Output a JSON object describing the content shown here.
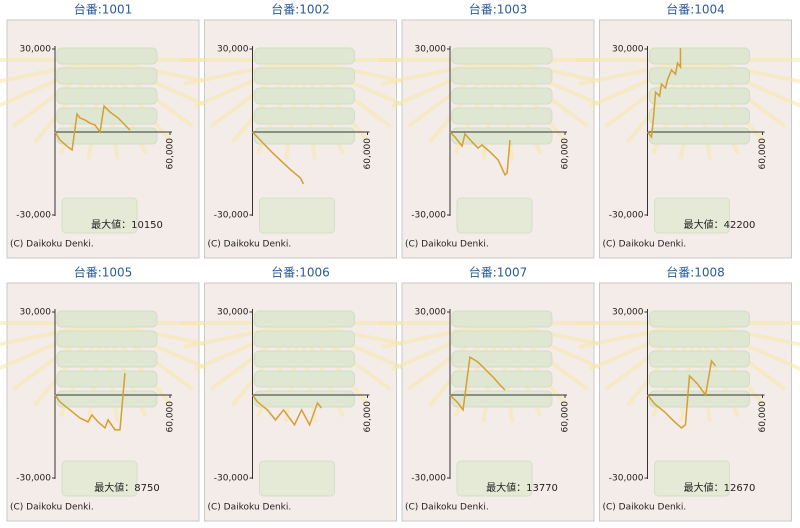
{
  "chart_data": [
    {
      "type": "line",
      "title": "台番:1001",
      "annotation": "最大値：10150",
      "footer": "(C) Daikoku Denki.",
      "xlim": [
        0,
        60000
      ],
      "ylim": [
        -30000,
        30000
      ],
      "xticks": [
        {
          "value": 60000,
          "label": "60,000"
        }
      ],
      "yticks": [
        {
          "value": 30000,
          "label": "30,000"
        },
        {
          "value": -30000,
          "label": "-30,000"
        }
      ],
      "color": "#d4a030",
      "x": [
        0,
        2600,
        6800,
        8900,
        11500,
        13000,
        15700,
        18300,
        20900,
        23500,
        25600,
        28700,
        32900,
        36000,
        39100
      ],
      "values": [
        0,
        -2900,
        -5400,
        -6500,
        6500,
        5100,
        4300,
        3200,
        2500,
        0,
        9400,
        7200,
        5100,
        2900,
        700
      ]
    },
    {
      "type": "line",
      "title": "台番:1002",
      "footer": "(C) Daikoku Denki.",
      "xlim": [
        0,
        60000
      ],
      "ylim": [
        -30000,
        30000
      ],
      "xticks": [
        {
          "value": 60000,
          "label": "60,000"
        }
      ],
      "yticks": [
        {
          "value": 30000,
          "label": "30,000"
        },
        {
          "value": -30000,
          "label": "-30,000"
        }
      ],
      "color": "#d4a030",
      "x": [
        0,
        5000,
        10000,
        15000,
        20000,
        25000,
        26600
      ],
      "values": [
        0,
        -3600,
        -7200,
        -10500,
        -13700,
        -16600,
        -18800
      ]
    },
    {
      "type": "line",
      "title": "台番:1003",
      "footer": "(C) Daikoku Denki.",
      "xlim": [
        0,
        60000
      ],
      "ylim": [
        -30000,
        30000
      ],
      "xticks": [
        {
          "value": 60000,
          "label": "60,000"
        }
      ],
      "yticks": [
        {
          "value": 30000,
          "label": "30,000"
        },
        {
          "value": -30000,
          "label": "-30,000"
        }
      ],
      "color": "#d4a030",
      "x": [
        0,
        2600,
        6300,
        7800,
        11500,
        14600,
        16700,
        20900,
        25100,
        28700,
        29800,
        31300
      ],
      "values": [
        0,
        -1800,
        -5100,
        -700,
        -3600,
        -5800,
        -4700,
        -7200,
        -10100,
        -15500,
        -14800,
        -2900
      ]
    },
    {
      "type": "line",
      "title": "台番:1004",
      "annotation": "最大値：42200",
      "footer": "(C) Daikoku Denki.",
      "xlim": [
        0,
        60000
      ],
      "ylim": [
        -30000,
        30000
      ],
      "xticks": [
        {
          "value": 60000,
          "label": "60,000"
        }
      ],
      "yticks": [
        {
          "value": 30000,
          "label": "30,000"
        },
        {
          "value": -30000,
          "label": "-30,000"
        }
      ],
      "color": "#d4a030",
      "x": [
        0,
        2100,
        3100,
        4200,
        6300,
        7300,
        9400,
        10400,
        12500,
        14600,
        15700,
        17200,
        17200
      ],
      "values": [
        0,
        -1800,
        5100,
        14400,
        13000,
        17300,
        15900,
        18800,
        22400,
        20900,
        24900,
        23500,
        30300
      ]
    },
    {
      "type": "line",
      "title": "台番:1005",
      "annotation": "最大値：8750",
      "footer": "(C) Daikoku Denki.",
      "xlim": [
        0,
        60000
      ],
      "ylim": [
        -30000,
        30000
      ],
      "xticks": [
        {
          "value": 60000,
          "label": "60,000"
        }
      ],
      "yticks": [
        {
          "value": 30000,
          "label": "30,000"
        },
        {
          "value": -30000,
          "label": "-30,000"
        }
      ],
      "color": "#d4a030",
      "x": [
        0,
        2600,
        7800,
        13000,
        17200,
        19300,
        22400,
        26100,
        27700,
        31300,
        33900,
        36500
      ],
      "values": [
        0,
        -2500,
        -5400,
        -8300,
        -9700,
        -7200,
        -9700,
        -11900,
        -9000,
        -12600,
        -12600,
        7900
      ]
    },
    {
      "type": "line",
      "title": "台番:1006",
      "footer": "(C) Daikoku Denki.",
      "xlim": [
        0,
        60000
      ],
      "ylim": [
        -30000,
        30000
      ],
      "xticks": [
        {
          "value": 60000,
          "label": "60,000"
        }
      ],
      "yticks": [
        {
          "value": 30000,
          "label": "30,000"
        },
        {
          "value": -30000,
          "label": "-30,000"
        }
      ],
      "color": "#d4a030",
      "x": [
        0,
        2600,
        7800,
        12000,
        16200,
        21900,
        25600,
        29800,
        33900,
        36000
      ],
      "values": [
        0,
        -2500,
        -5400,
        -9000,
        -5400,
        -10800,
        -5400,
        -10800,
        -2900,
        -4700
      ]
    },
    {
      "type": "line",
      "title": "台番:1007",
      "annotation": "最大値：13770",
      "footer": "(C) Daikoku Denki.",
      "xlim": [
        0,
        60000
      ],
      "ylim": [
        -30000,
        30000
      ],
      "xticks": [
        {
          "value": 60000,
          "label": "60,000"
        }
      ],
      "yticks": [
        {
          "value": 30000,
          "label": "30,000"
        },
        {
          "value": -30000,
          "label": "-30,000"
        }
      ],
      "color": "#d4a030",
      "x": [
        0,
        4200,
        6800,
        10400,
        14600,
        18800,
        23000,
        26100,
        28700
      ],
      "values": [
        0,
        -2900,
        -5400,
        13700,
        11900,
        9000,
        6100,
        3600,
        1800
      ]
    },
    {
      "type": "line",
      "title": "台番:1008",
      "annotation": "最大値：12670",
      "footer": "(C) Daikoku Denki.",
      "xlim": [
        0,
        60000
      ],
      "ylim": [
        -30000,
        30000
      ],
      "xticks": [
        {
          "value": 60000,
          "label": "60,000"
        }
      ],
      "yticks": [
        {
          "value": 30000,
          "label": "30,000"
        },
        {
          "value": -30000,
          "label": "-30,000"
        }
      ],
      "color": "#d4a030",
      "x": [
        0,
        3700,
        8900,
        14100,
        17700,
        19800,
        21900,
        26100,
        30300,
        33400,
        35500
      ],
      "values": [
        0,
        -3200,
        -6100,
        -9700,
        -11900,
        -10800,
        6900,
        4000,
        0,
        12300,
        10500
      ]
    }
  ]
}
